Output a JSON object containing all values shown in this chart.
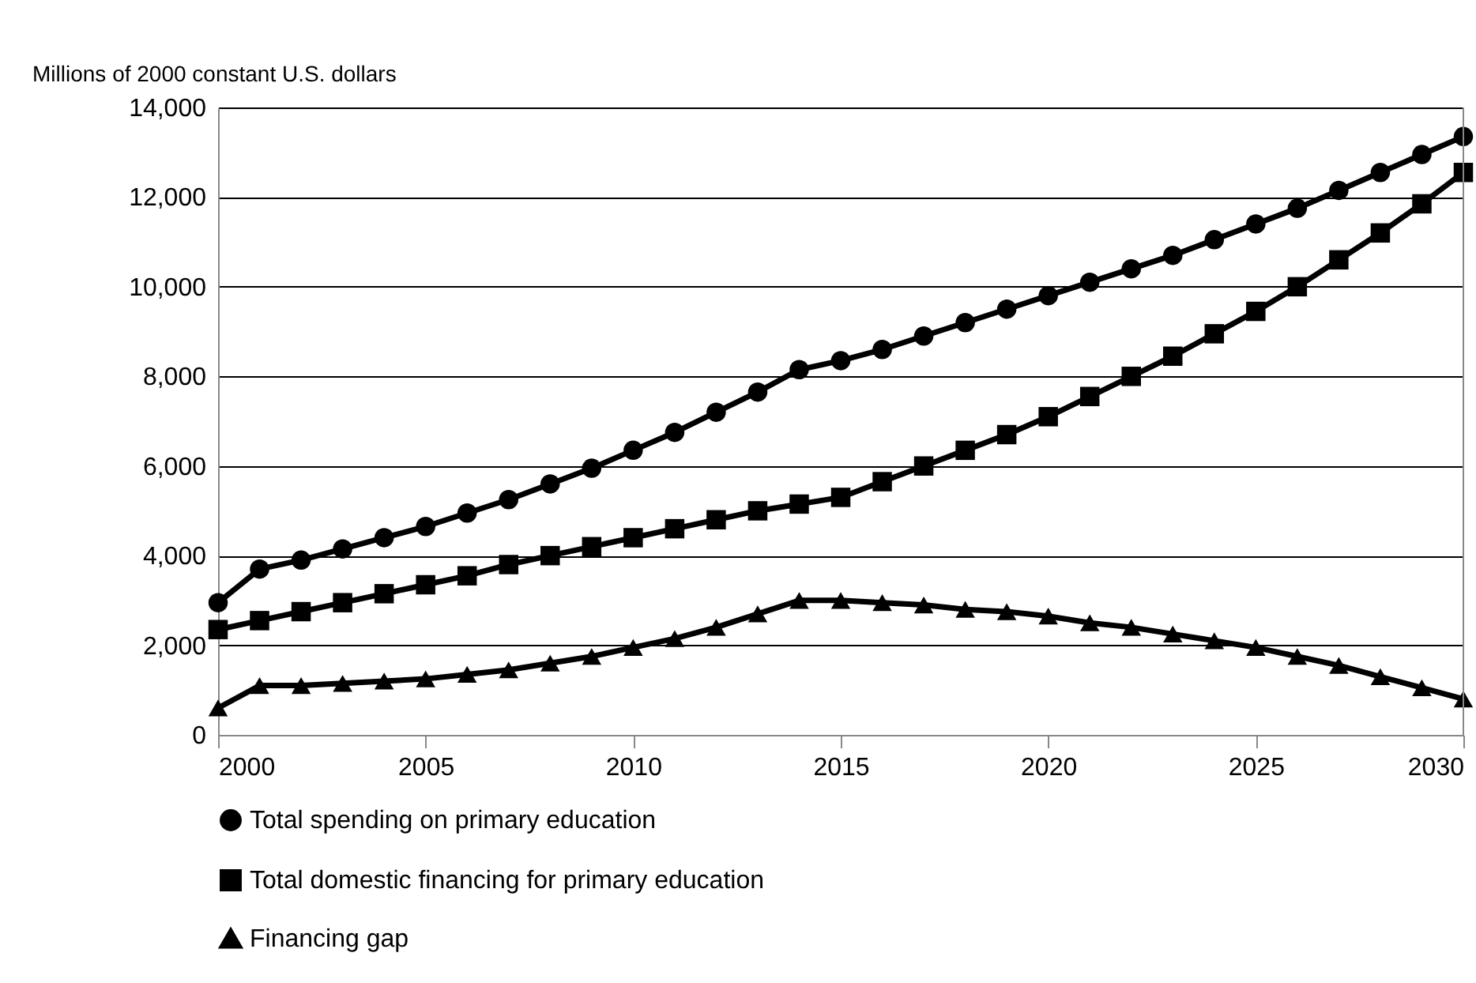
{
  "chart_data": {
    "type": "line",
    "ylabel": "Millions of 2000 constant U.S. dollars",
    "x": [
      2000,
      2001,
      2002,
      2003,
      2004,
      2005,
      2006,
      2007,
      2008,
      2009,
      2010,
      2011,
      2012,
      2013,
      2014,
      2015,
      2016,
      2017,
      2018,
      2019,
      2020,
      2021,
      2022,
      2023,
      2024,
      2025,
      2026,
      2027,
      2028,
      2029,
      2030
    ],
    "xlim": [
      2000,
      2030
    ],
    "xticks": [
      2000,
      2005,
      2010,
      2015,
      2020,
      2025,
      2030
    ],
    "ylim": [
      0,
      14000
    ],
    "yticks": [
      {
        "value": 0,
        "label": "0"
      },
      {
        "value": 2000,
        "label": "2,000"
      },
      {
        "value": 4000,
        "label": "4,000"
      },
      {
        "value": 6000,
        "label": "6,000"
      },
      {
        "value": 8000,
        "label": "8,000"
      },
      {
        "value": 10000,
        "label": "10,000"
      },
      {
        "value": 12000,
        "label": "12,000"
      },
      {
        "value": 14000,
        "label": "14,000"
      }
    ],
    "grid": "y",
    "legend": "bottom",
    "line_style": "solid",
    "series": [
      {
        "name": "Total spending on primary education",
        "color": "#000000",
        "marker": "circle",
        "values": [
          2950,
          3700,
          3900,
          4150,
          4400,
          4650,
          4950,
          5250,
          5600,
          5950,
          6350,
          6750,
          7200,
          7650,
          8150,
          8350,
          8600,
          8900,
          9200,
          9500,
          9800,
          10100,
          10400,
          10700,
          11050,
          11400,
          11750,
          12150,
          12550,
          12950,
          13350
        ]
      },
      {
        "name": "Total domestic financing for primary education",
        "color": "#000000",
        "marker": "square",
        "values": [
          2350,
          2550,
          2750,
          2950,
          3150,
          3350,
          3550,
          3800,
          4000,
          4200,
          4400,
          4600,
          4800,
          5000,
          5150,
          5300,
          5650,
          6000,
          6350,
          6700,
          7100,
          7550,
          8000,
          8450,
          8950,
          9450,
          10000,
          10600,
          11200,
          11850,
          12550
        ]
      },
      {
        "name": "Financing gap",
        "color": "#000000",
        "marker": "triangle",
        "values": [
          600,
          1100,
          1100,
          1150,
          1200,
          1250,
          1350,
          1450,
          1600,
          1750,
          1950,
          2150,
          2400,
          2700,
          3000,
          3000,
          2950,
          2900,
          2800,
          2750,
          2650,
          2500,
          2400,
          2250,
          2100,
          1950,
          1750,
          1550,
          1300,
          1050,
          800
        ]
      }
    ]
  }
}
